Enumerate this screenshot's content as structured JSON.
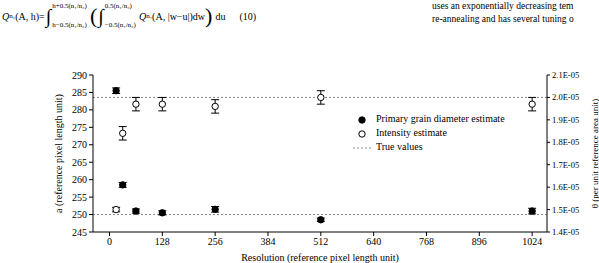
{
  "page": {
    "equation": {
      "lhs": "Q",
      "lhs_sub": "n₂",
      "lhs_args": "(A, h)=",
      "integral": "∫",
      "outer_upper": "h+0.5(n₁/n₂)",
      "outer_lower": "h−0.5(n₁/n₂)",
      "open_paren": "(",
      "inner_upper": "0.5(n₁/n₂)",
      "inner_lower": "−0.5(n₁/n₂)",
      "integrand": "Q",
      "integrand_sub": "n₁",
      "integrand_args": "(A, |w−u|)dw",
      "close_paren": ")",
      "tail": "du",
      "number": "(10)"
    },
    "side_text": [
      "uses an exponentially decreasing tem",
      "re-annealing and has several tuning o"
    ]
  },
  "chart_data": {
    "type": "scatter",
    "xlabel": "Resolution (reference pixel length unit)",
    "ylabel": "a (reference pixel length unit)",
    "y2label": "θ (per unit reference area unit)",
    "x": [
      16,
      32,
      64,
      128,
      256,
      512,
      1024
    ],
    "xlim": [
      -40,
      1060
    ],
    "xticks": [
      0,
      128,
      256,
      384,
      512,
      640,
      768,
      896,
      1024
    ],
    "ylim": [
      245,
      290
    ],
    "yticks": [
      245,
      250,
      255,
      260,
      265,
      270,
      275,
      280,
      285,
      290
    ],
    "y2lim": [
      1.4e-05,
      2.1e-05
    ],
    "y2ticks": [
      {
        "value": 1.4e-05,
        "label": "1.4E-05"
      },
      {
        "value": 1.5e-05,
        "label": "1.5E-05"
      },
      {
        "value": 1.6e-05,
        "label": "1.6E-05"
      },
      {
        "value": 1.7e-05,
        "label": "1.7E-05"
      },
      {
        "value": 1.8e-05,
        "label": "1.8E-05"
      },
      {
        "value": 1.9e-05,
        "label": "1.9E-05"
      },
      {
        "value": 2e-05,
        "label": "2.0E-05"
      },
      {
        "value": 2.1e-05,
        "label": "2.1E-05"
      }
    ],
    "series": [
      {
        "name": "Primary grain diameter estimate",
        "color": "#000000",
        "marker": "filled circle",
        "values": [
          285.5,
          258.5,
          251,
          250.5,
          251.5,
          248.5,
          251
        ],
        "errors": [
          0.8,
          0.7,
          0.6,
          0.6,
          0.8,
          0.5,
          0.8
        ]
      },
      {
        "name": "Intensity estimate",
        "color": "#000000",
        "marker": "open circle",
        "axis": "y2",
        "values": [
          1.5e-05,
          1.84e-05,
          1.97e-05,
          1.97e-05,
          1.96e-05,
          2e-05,
          1.97e-05
        ],
        "errors": [
          1e-07,
          3e-07,
          3e-07,
          3e-07,
          3e-07,
          3e-07,
          3e-07
        ]
      }
    ],
    "reference_lines": [
      {
        "name": "True values",
        "color": "#888888",
        "line_style": "dotted",
        "axis": "y",
        "value": 250
      },
      {
        "color": "#888888",
        "line_style": "dotted",
        "axis": "y2",
        "value": 2e-05
      }
    ],
    "legend": "upper right",
    "grid": false
  }
}
